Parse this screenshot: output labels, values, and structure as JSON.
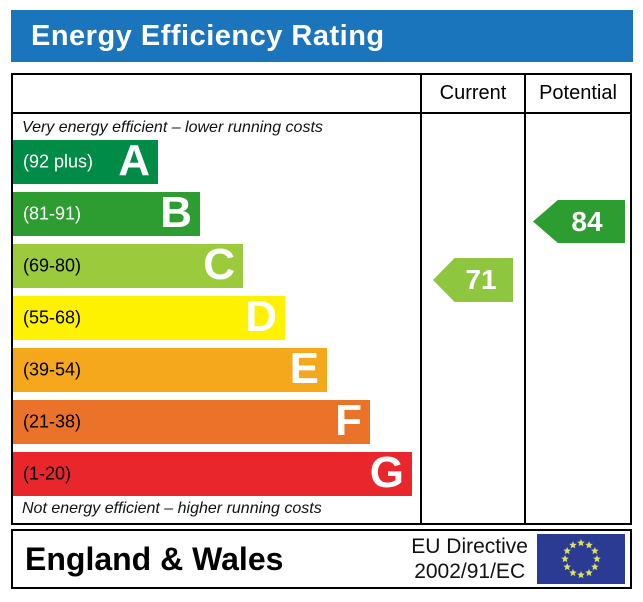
{
  "title": "Energy Efficiency Rating",
  "colors": {
    "title_bar": "#1b75bc",
    "title_text": "#ffffff",
    "border": "#000000",
    "current_arrow": "#8ec63f",
    "potential_arrow": "#2e9d31",
    "eu_flag_blue": "#2b3a92",
    "eu_flag_stars": "#dce063"
  },
  "header": {
    "current": "Current",
    "potential": "Potential"
  },
  "notes": {
    "top": "Very energy efficient – lower running costs",
    "bottom": "Not energy efficient – higher running costs"
  },
  "bands": [
    {
      "letter": "A",
      "range_label": "(92 plus)",
      "color": "#008c46",
      "label_color": "#ffffff"
    },
    {
      "letter": "B",
      "range_label": "(81-91)",
      "color": "#2e9d31",
      "label_color": "#ffffff"
    },
    {
      "letter": "C",
      "range_label": "(69-80)",
      "color": "#9bca3c",
      "label_color": "#000000"
    },
    {
      "letter": "D",
      "range_label": "(55-68)",
      "color": "#fef200",
      "label_color": "#000000"
    },
    {
      "letter": "E",
      "range_label": "(39-54)",
      "color": "#f6a81d",
      "label_color": "#000000"
    },
    {
      "letter": "F",
      "range_label": "(21-38)",
      "color": "#ea7329",
      "label_color": "#000000"
    },
    {
      "letter": "G",
      "range_label": "(1-20)",
      "color": "#e9262c",
      "label_color": "#000000"
    }
  ],
  "ratings": {
    "current": {
      "value": "71",
      "band": "C",
      "color": "#8ec63f"
    },
    "potential": {
      "value": "84",
      "band": "B",
      "color": "#2e9d31"
    }
  },
  "footer": {
    "region": "England & Wales",
    "directive_line1": "EU Directive",
    "directive_line2": "2002/91/EC"
  },
  "chart_data": {
    "type": "bar",
    "title": "Energy Efficiency Rating",
    "categories": [
      "A",
      "B",
      "C",
      "D",
      "E",
      "F",
      "G"
    ],
    "band_ranges": [
      "92 plus",
      "81-91",
      "69-80",
      "55-68",
      "39-54",
      "21-38",
      "1-20"
    ],
    "band_colors": [
      "#008c46",
      "#2e9d31",
      "#9bca3c",
      "#fef200",
      "#f6a81d",
      "#ea7329",
      "#e9262c"
    ],
    "series": [
      {
        "name": "Current",
        "value": 71,
        "band": "C"
      },
      {
        "name": "Potential",
        "value": 84,
        "band": "B"
      }
    ],
    "annotations": [
      "Very energy efficient – lower running costs",
      "Not energy efficient – higher running costs"
    ],
    "footer": [
      "England & Wales",
      "EU Directive 2002/91/EC"
    ]
  }
}
